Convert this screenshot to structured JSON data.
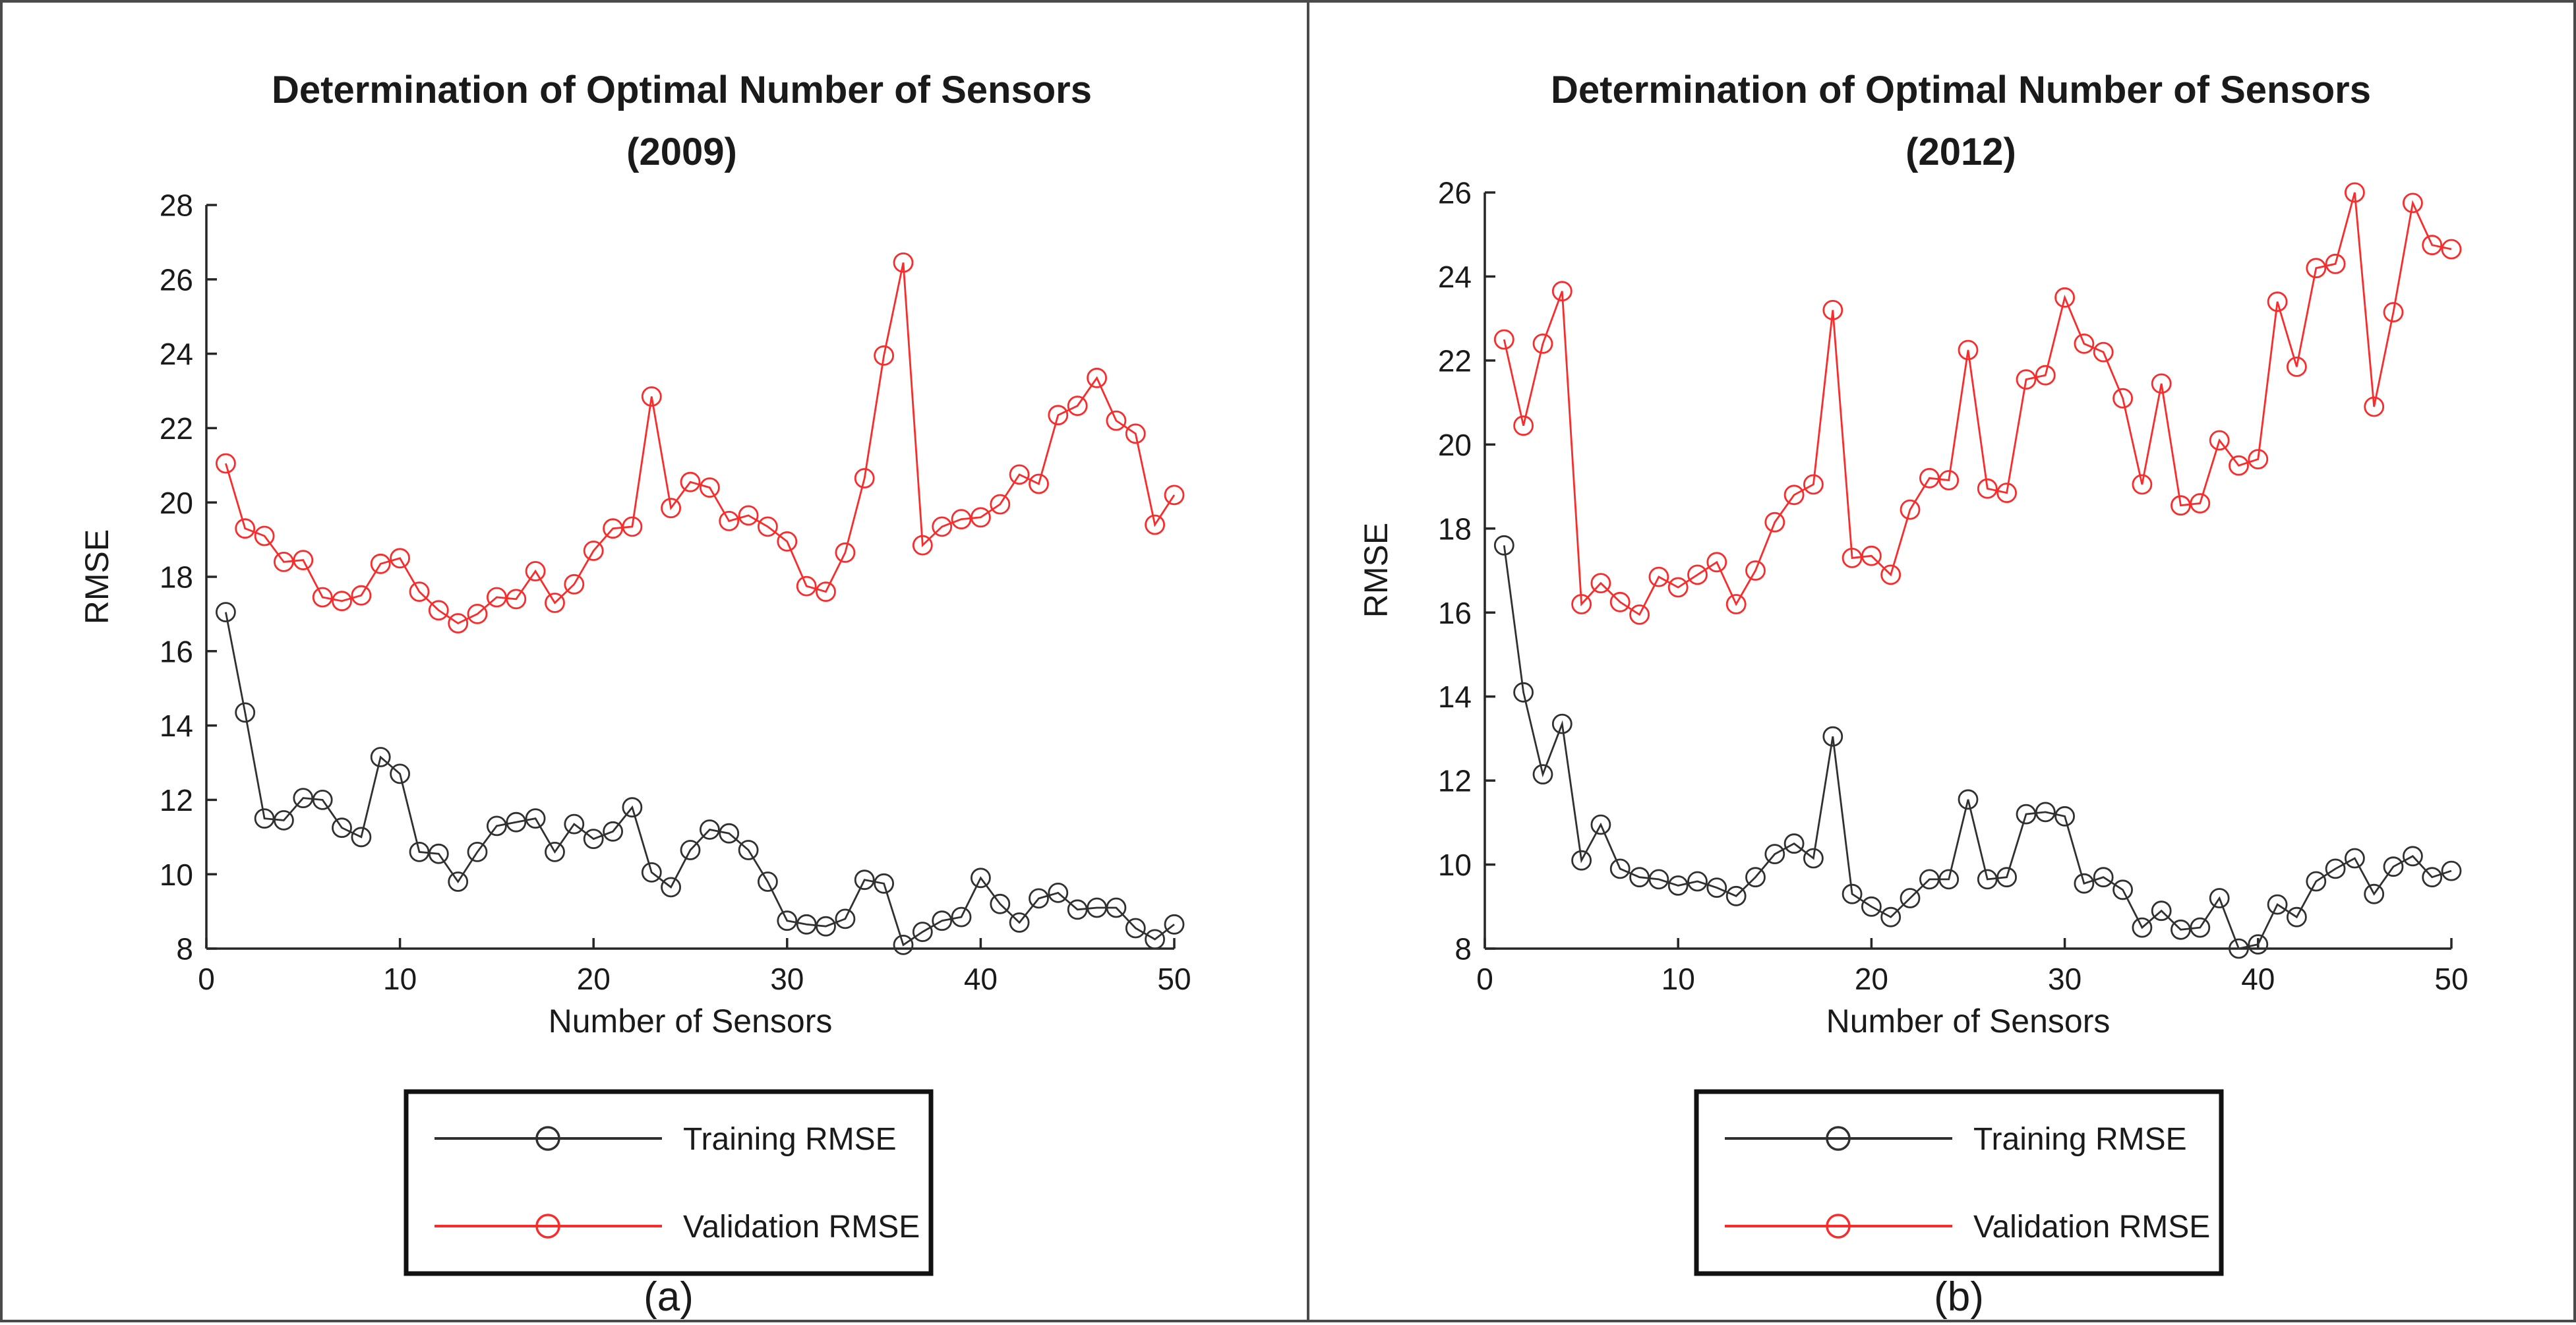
{
  "legend": {
    "items": [
      {
        "label": "Training RMSE",
        "color": "#303030"
      },
      {
        "label": "Validation RMSE",
        "color": "#f92b2b"
      }
    ]
  },
  "chart_data": [
    {
      "type": "line",
      "title": "Determination of Optimal Number of Sensors",
      "subtitle": "(2009)",
      "xlabel": "Number of Sensors",
      "ylabel": "RMSE",
      "caption": "(a)",
      "xlim": [
        0,
        50
      ],
      "ylim": [
        8,
        28
      ],
      "xticks": [
        0,
        10,
        20,
        30,
        40,
        50
      ],
      "yticks": [
        8,
        10,
        12,
        14,
        16,
        18,
        20,
        22,
        24,
        26,
        28
      ],
      "x_start": 1,
      "grid": false,
      "legend_position": "below",
      "series": [
        {
          "name": "Training RMSE",
          "color": "#303030",
          "values": [
            17.05,
            14.35,
            11.5,
            11.45,
            12.05,
            12.0,
            11.25,
            11.0,
            13.15,
            12.7,
            10.6,
            10.55,
            9.8,
            10.6,
            11.3,
            11.4,
            11.5,
            10.6,
            11.35,
            10.95,
            11.15,
            11.8,
            10.05,
            9.65,
            10.65,
            11.2,
            11.1,
            10.65,
            9.8,
            8.75,
            8.65,
            8.6,
            8.8,
            9.85,
            9.75,
            8.1,
            8.45,
            8.75,
            8.85,
            9.9,
            9.2,
            8.7,
            9.35,
            9.5,
            9.05,
            9.1,
            9.1,
            8.55,
            8.25,
            8.65
          ]
        },
        {
          "name": "Validation RMSE",
          "color": "#f92b2b",
          "values": [
            21.05,
            19.3,
            19.1,
            18.4,
            18.45,
            17.45,
            17.35,
            17.5,
            18.35,
            18.5,
            17.6,
            17.1,
            16.75,
            17.0,
            17.45,
            17.4,
            18.15,
            17.3,
            17.8,
            18.7,
            19.3,
            19.35,
            22.85,
            19.85,
            20.55,
            20.4,
            19.5,
            19.65,
            19.35,
            18.95,
            17.75,
            17.6,
            18.65,
            20.65,
            23.95,
            26.45,
            18.85,
            19.35,
            19.55,
            19.6,
            19.95,
            20.75,
            20.5,
            22.35,
            22.6,
            23.35,
            22.2,
            21.85,
            19.4,
            20.2
          ]
        }
      ]
    },
    {
      "type": "line",
      "title": "Determination of Optimal Number of Sensors",
      "subtitle": "(2012)",
      "xlabel": "Number of Sensors",
      "ylabel": "RMSE",
      "caption": "(b)",
      "xlim": [
        0,
        50
      ],
      "ylim": [
        8,
        26
      ],
      "xticks": [
        0,
        10,
        20,
        30,
        40,
        50
      ],
      "yticks": [
        8,
        10,
        12,
        14,
        16,
        18,
        20,
        22,
        24,
        26
      ],
      "x_start": 1,
      "grid": false,
      "legend_position": "below",
      "series": [
        {
          "name": "Training RMSE",
          "color": "#303030",
          "values": [
            17.6,
            14.1,
            12.15,
            13.35,
            10.1,
            10.95,
            9.9,
            9.7,
            9.65,
            9.5,
            9.6,
            9.45,
            9.25,
            9.7,
            10.25,
            10.5,
            10.15,
            13.05,
            9.3,
            9.0,
            8.75,
            9.2,
            9.65,
            9.65,
            11.55,
            9.65,
            9.7,
            11.2,
            11.25,
            11.15,
            9.55,
            9.7,
            9.4,
            8.5,
            8.9,
            8.45,
            8.5,
            9.2,
            8.0,
            8.1,
            9.05,
            8.75,
            9.6,
            9.9,
            10.15,
            9.3,
            9.95,
            10.2,
            9.7,
            9.85
          ]
        },
        {
          "name": "Validation RMSE",
          "color": "#f92b2b",
          "values": [
            22.5,
            20.45,
            22.4,
            23.65,
            16.2,
            16.7,
            16.25,
            15.95,
            16.85,
            16.6,
            16.9,
            17.2,
            16.2,
            17.0,
            18.15,
            18.8,
            19.05,
            23.2,
            17.3,
            17.35,
            16.9,
            18.45,
            19.2,
            19.15,
            22.25,
            18.95,
            18.85,
            21.55,
            21.65,
            23.5,
            22.4,
            22.2,
            21.1,
            19.05,
            21.45,
            18.55,
            18.6,
            20.1,
            19.5,
            19.65,
            23.4,
            21.85,
            24.2,
            24.3,
            26.0,
            20.9,
            23.15,
            25.75,
            24.75,
            24.65
          ]
        }
      ]
    }
  ]
}
